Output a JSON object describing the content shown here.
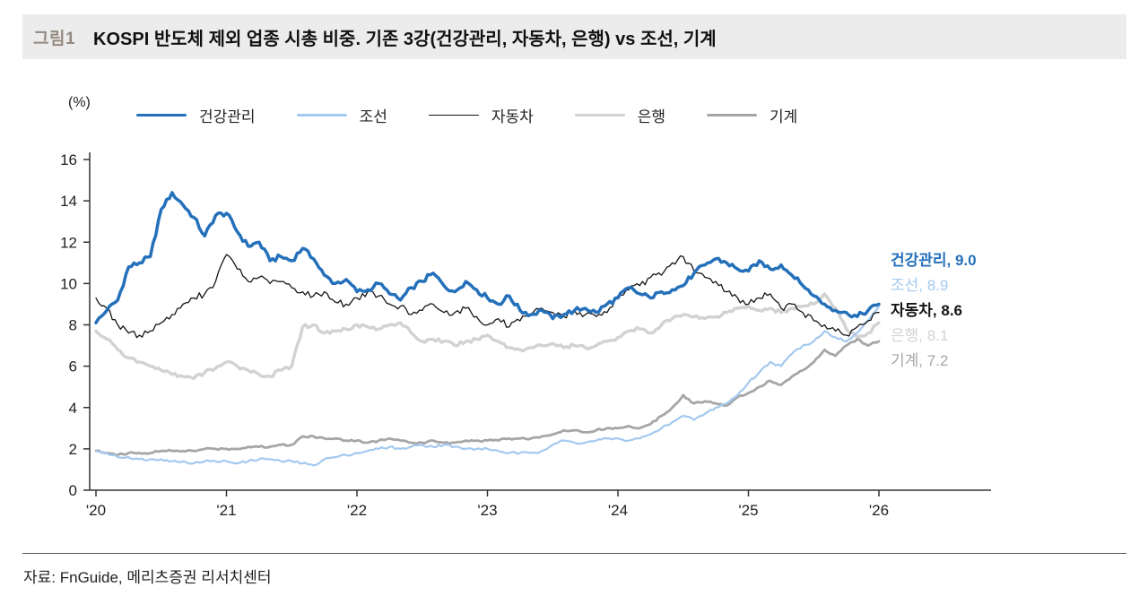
{
  "header": {
    "figure_label": "그림1",
    "title": "KOSPI 반도체 제외 업종 시총 비중. 기존 3강(건강관리, 자동차, 은행) vs 조선, 기계"
  },
  "source": "자료: FnGuide,  메리츠증권 리서치센터",
  "colors": {
    "header_bg": "#ececec",
    "figure_label": "#948a80",
    "axis": "#333333",
    "healthcare_blue": "#2470ba",
    "shipbuilding_lightblue": "#a3c9ef",
    "auto_black": "#151515",
    "bank_lightgray": "#d2d2d2",
    "machinery_gray": "#a6a6a6"
  },
  "chart_data": {
    "type": "line",
    "title": "KOSPI 반도체 제외 업종 시총 비중. 기존 3강(건강관리, 자동차, 은행) vs 조선, 기계",
    "ylabel": "(%)",
    "xlabel": "",
    "ylim": [
      0,
      16
    ],
    "yticks": [
      0,
      2,
      4,
      6,
      8,
      10,
      12,
      14,
      16
    ],
    "xticks": [
      "'20",
      "'21",
      "'22",
      "'23",
      "'24",
      "'25",
      "'26"
    ],
    "x_unit": "monthly from 2020-01 to 2026-01",
    "grid": false,
    "legend_position": "top",
    "series": [
      {
        "name": "건강관리",
        "color": "#2470ba",
        "line_width": 3.5,
        "end_label": "건강관리, 9.0",
        "end_value": 9.0,
        "values": [
          8.1,
          8.7,
          9.2,
          10.8,
          11.0,
          11.3,
          13.6,
          14.4,
          13.8,
          13.2,
          12.3,
          13.3,
          13.4,
          12.5,
          11.8,
          12.0,
          11.1,
          11.3,
          11.1,
          11.7,
          11.2,
          10.4,
          10.0,
          10.2,
          9.6,
          9.7,
          10.0,
          9.5,
          9.2,
          9.8,
          10.1,
          10.5,
          9.9,
          9.6,
          10.1,
          9.7,
          9.3,
          9.0,
          9.4,
          8.7,
          8.5,
          8.7,
          8.3,
          8.5,
          8.7,
          8.8,
          8.6,
          9.0,
          9.3,
          9.8,
          9.5,
          9.3,
          9.6,
          9.7,
          9.9,
          10.5,
          10.9,
          11.2,
          11.0,
          10.7,
          10.6,
          11.1,
          10.7,
          10.9,
          10.4,
          9.9,
          9.4,
          9.0,
          8.7,
          8.6,
          8.4,
          8.7,
          9.0
        ]
      },
      {
        "name": "조선",
        "color": "#a3c9ef",
        "line_width": 2.2,
        "end_label": "조선, 8.9",
        "end_value": 8.9,
        "values": [
          1.9,
          1.8,
          1.6,
          1.6,
          1.5,
          1.5,
          1.5,
          1.4,
          1.4,
          1.3,
          1.4,
          1.4,
          1.4,
          1.3,
          1.4,
          1.5,
          1.5,
          1.4,
          1.4,
          1.3,
          1.2,
          1.5,
          1.6,
          1.7,
          1.8,
          1.9,
          2.0,
          2.1,
          2.0,
          2.1,
          2.2,
          2.1,
          2.2,
          2.1,
          2.0,
          2.0,
          2.0,
          1.9,
          1.8,
          1.8,
          1.8,
          1.9,
          2.2,
          2.4,
          2.3,
          2.3,
          2.4,
          2.5,
          2.5,
          2.4,
          2.5,
          2.7,
          3.0,
          3.3,
          3.6,
          3.4,
          3.7,
          4.0,
          4.2,
          4.6,
          5.2,
          5.7,
          6.2,
          6.0,
          6.6,
          7.0,
          7.2,
          7.7,
          7.4,
          7.2,
          7.6,
          8.2,
          8.9
        ]
      },
      {
        "name": "자동차",
        "color": "#151515",
        "line_width": 1.3,
        "end_label": "자동차, 8.6",
        "end_value": 8.6,
        "values": [
          9.3,
          8.8,
          8.0,
          7.6,
          7.5,
          7.7,
          8.1,
          8.5,
          9.0,
          9.3,
          9.5,
          10.1,
          11.4,
          10.7,
          10.1,
          10.3,
          10.0,
          10.1,
          9.8,
          9.6,
          9.4,
          9.6,
          9.1,
          9.0,
          9.3,
          9.6,
          9.4,
          9.0,
          8.9,
          8.5,
          8.7,
          9.0,
          8.6,
          8.6,
          8.8,
          8.4,
          8.0,
          8.3,
          7.9,
          8.2,
          8.5,
          8.8,
          8.6,
          8.4,
          8.7,
          8.5,
          8.4,
          8.6,
          9.4,
          9.7,
          9.9,
          10.3,
          10.4,
          11.0,
          11.3,
          10.6,
          10.3,
          10.1,
          9.6,
          9.3,
          9.0,
          9.3,
          9.5,
          8.8,
          9.0,
          8.6,
          8.2,
          8.0,
          7.7,
          7.5,
          7.9,
          8.2,
          8.6
        ]
      },
      {
        "name": "은행",
        "color": "#d2d2d2",
        "line_width": 3.4,
        "end_label": "은행, 8.1",
        "end_value": 8.1,
        "values": [
          7.7,
          7.3,
          6.8,
          6.4,
          6.2,
          6.0,
          5.8,
          5.6,
          5.5,
          5.4,
          5.7,
          5.9,
          6.2,
          6.0,
          5.8,
          5.6,
          5.5,
          5.8,
          6.0,
          7.9,
          8.0,
          7.6,
          7.7,
          7.8,
          8.0,
          7.9,
          7.8,
          8.0,
          8.1,
          7.6,
          7.2,
          7.3,
          7.2,
          7.0,
          7.2,
          7.3,
          7.5,
          7.2,
          6.9,
          6.8,
          6.9,
          7.0,
          7.1,
          6.9,
          7.0,
          6.9,
          7.0,
          7.2,
          7.4,
          7.7,
          7.8,
          7.6,
          8.0,
          8.3,
          8.5,
          8.4,
          8.3,
          8.4,
          8.6,
          8.8,
          8.9,
          8.7,
          8.8,
          8.6,
          8.8,
          8.9,
          9.0,
          9.5,
          8.8,
          7.8,
          7.4,
          7.6,
          8.1
        ]
      },
      {
        "name": "기계",
        "color": "#a6a6a6",
        "line_width": 2.8,
        "end_label": "기계, 7.2",
        "end_value": 7.2,
        "values": [
          1.9,
          1.8,
          1.7,
          1.8,
          1.8,
          1.8,
          1.9,
          1.9,
          1.9,
          1.9,
          2.0,
          2.0,
          2.0,
          2.0,
          2.1,
          2.1,
          2.1,
          2.2,
          2.2,
          2.6,
          2.6,
          2.5,
          2.5,
          2.4,
          2.4,
          2.3,
          2.4,
          2.5,
          2.4,
          2.3,
          2.3,
          2.4,
          2.3,
          2.3,
          2.4,
          2.4,
          2.4,
          2.4,
          2.5,
          2.5,
          2.5,
          2.6,
          2.7,
          2.9,
          2.9,
          2.8,
          2.9,
          3.0,
          3.0,
          3.1,
          3.0,
          3.2,
          3.6,
          4.0,
          4.6,
          4.2,
          4.3,
          4.2,
          4.1,
          4.5,
          4.7,
          5.0,
          5.3,
          5.1,
          5.5,
          5.8,
          6.2,
          6.8,
          6.5,
          7.0,
          7.3,
          7.0,
          7.2
        ]
      }
    ]
  }
}
